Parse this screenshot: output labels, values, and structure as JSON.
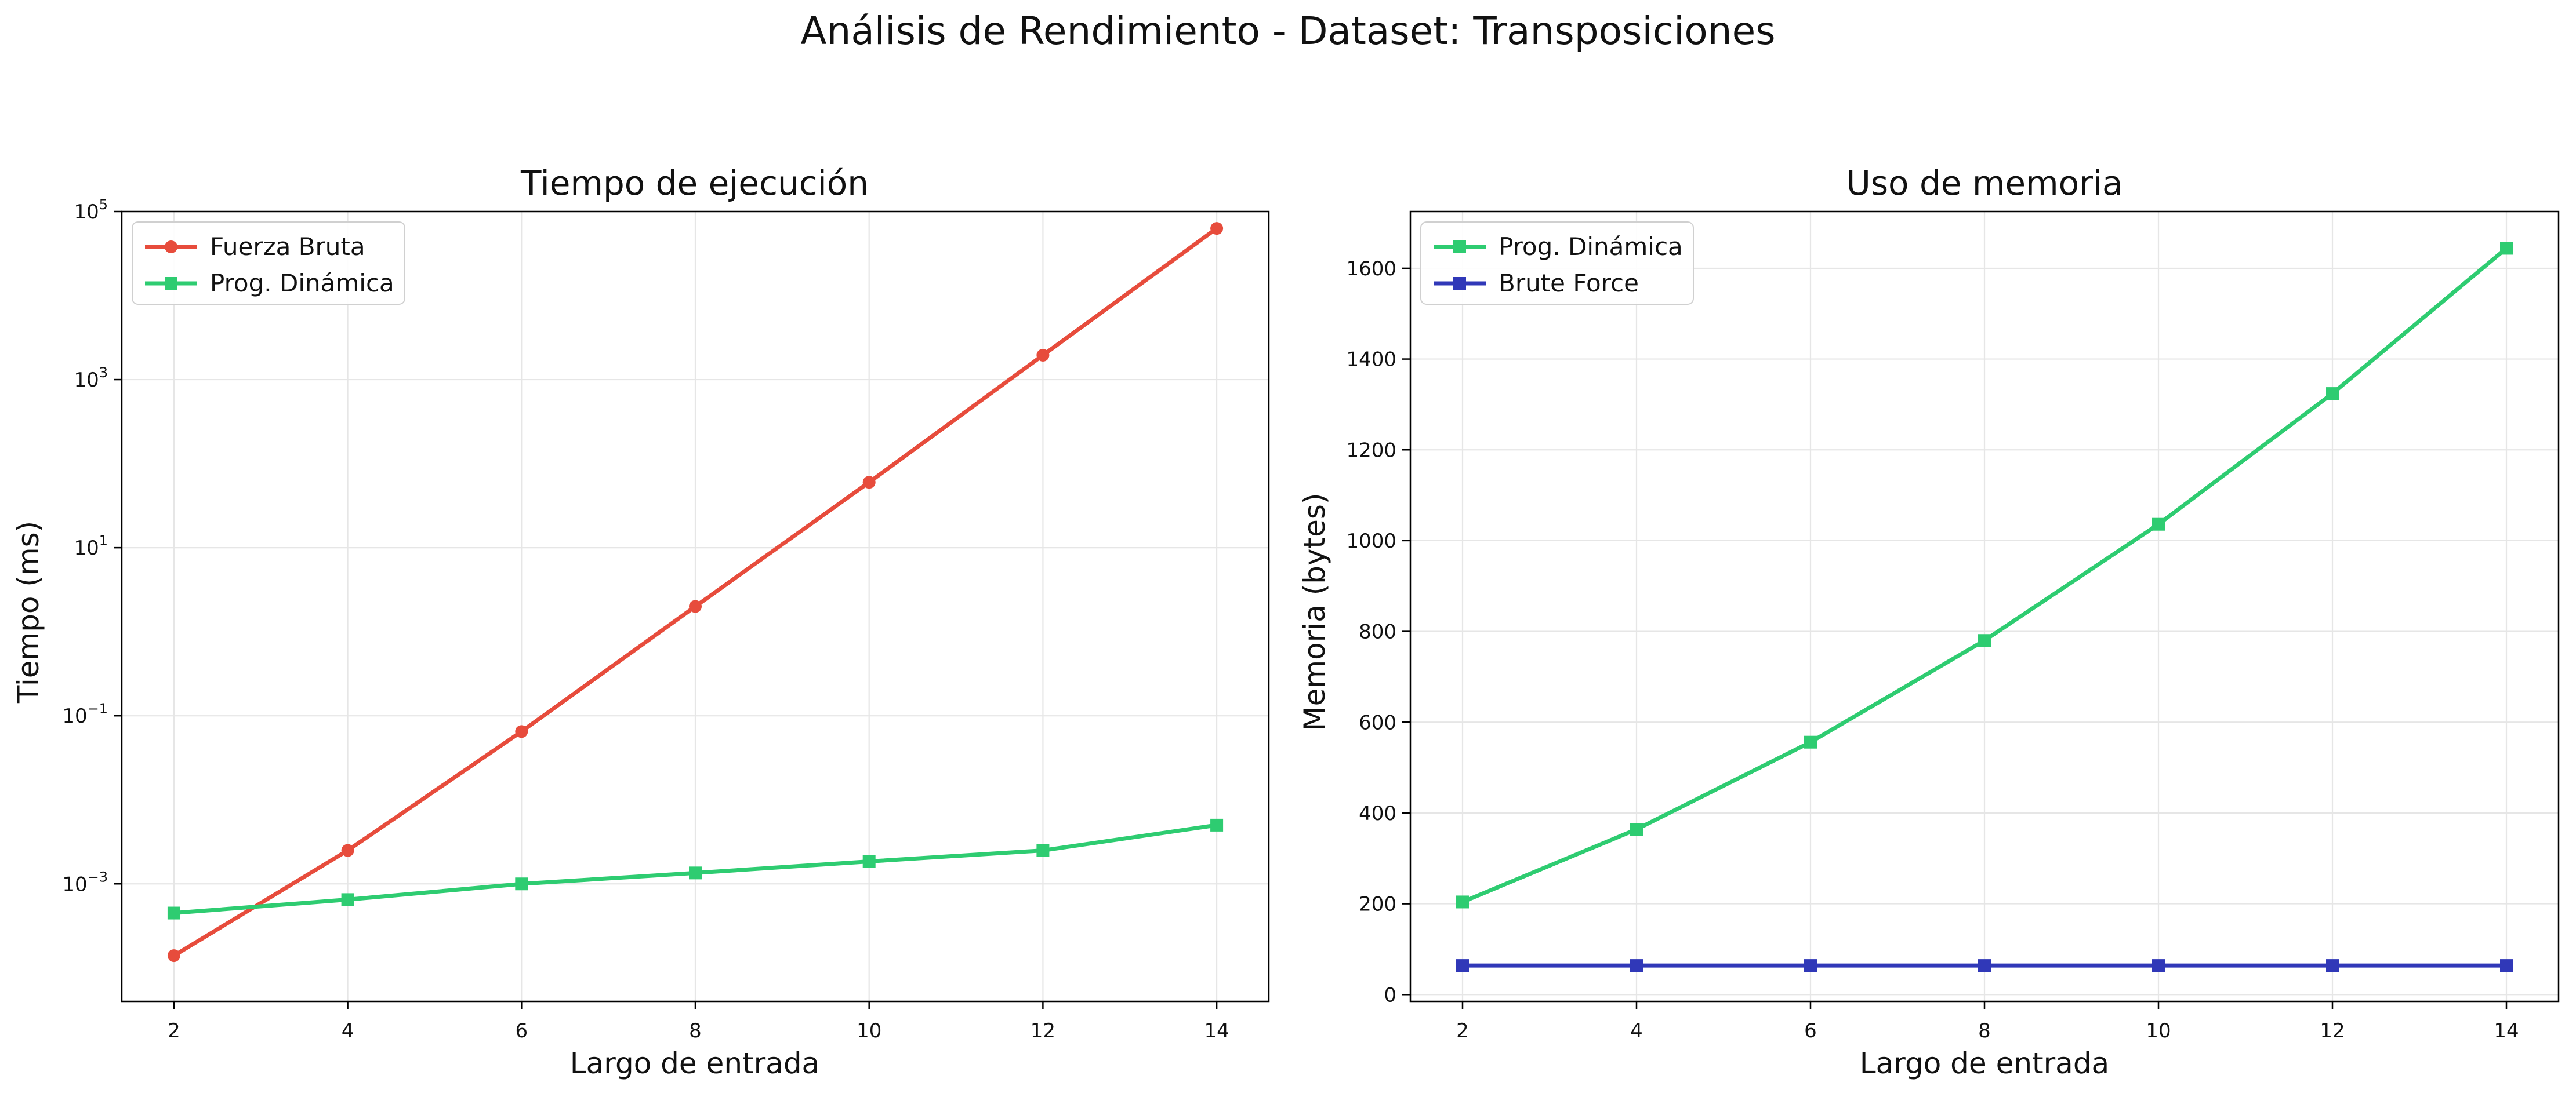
{
  "figure": {
    "suptitle": "Análisis de Rendimiento - Dataset: Transposiciones"
  },
  "chart_data": [
    {
      "type": "line",
      "title": "Tiempo de ejecución",
      "xlabel": "Largo de entrada",
      "ylabel": "Tiempo (ms)",
      "yscale": "log",
      "xlim": [
        1.4,
        14.6
      ],
      "ylim": [
        4e-05,
        100000
      ],
      "xticks": [
        "2",
        "4",
        "6",
        "8",
        "10",
        "12",
        "14"
      ],
      "yticks": [
        {
          "value": 0.001,
          "base": "10",
          "exp": "−3"
        },
        {
          "value": 0.1,
          "base": "10",
          "exp": "−1"
        },
        {
          "value": 10,
          "base": "10",
          "exp": "1"
        },
        {
          "value": 1000,
          "base": "10",
          "exp": "3"
        },
        {
          "value": 100000,
          "base": "10",
          "exp": "5"
        }
      ],
      "grid": true,
      "legend": "top-left",
      "x": [
        2,
        4,
        6,
        8,
        10,
        12,
        14
      ],
      "series": [
        {
          "name": "Fuerza Bruta",
          "color": "#e74c3c",
          "marker": "circle",
          "values": [
            0.00014,
            0.0025,
            0.065,
            2.0,
            60,
            1950,
            63000
          ]
        },
        {
          "name": "Prog. Dinámica",
          "color": "#2ecc71",
          "marker": "square",
          "values": [
            0.00045,
            0.00065,
            0.001,
            0.00135,
            0.00185,
            0.0025,
            0.005
          ]
        }
      ]
    },
    {
      "type": "line",
      "title": "Uso de memoria",
      "xlabel": "Largo de entrada",
      "ylabel": "Memoria (bytes)",
      "yscale": "linear",
      "xlim": [
        1.4,
        14.6
      ],
      "ylim": [
        -15,
        1725
      ],
      "xticks": [
        "2",
        "4",
        "6",
        "8",
        "10",
        "12",
        "14"
      ],
      "yticks": [
        "0",
        "200",
        "400",
        "600",
        "800",
        "1000",
        "1200",
        "1400",
        "1600"
      ],
      "grid": true,
      "legend": "top-left",
      "x": [
        2,
        4,
        6,
        8,
        10,
        12,
        14
      ],
      "series": [
        {
          "name": "Prog. Dinámica",
          "color": "#2ecc71",
          "marker": "square",
          "values": [
            204,
            364,
            556,
            780,
            1036,
            1324,
            1644
          ]
        },
        {
          "name": "Brute Force",
          "color": "#3038b8",
          "marker": "square",
          "values": [
            64,
            64,
            64,
            64,
            64,
            64,
            64
          ]
        }
      ]
    }
  ]
}
